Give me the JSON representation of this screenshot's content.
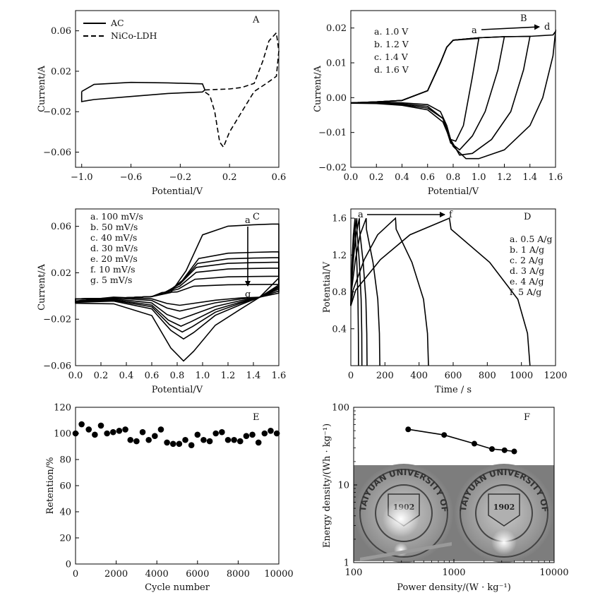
{
  "chart_data": [
    {
      "panel": "A",
      "type": "line",
      "xlabel": "Potential/V",
      "ylabel": "Current/A",
      "xlim": [
        -1.05,
        0.6
      ],
      "ylim": [
        -0.075,
        0.08
      ],
      "xticks": [
        -1.0,
        -0.6,
        -0.2,
        0.2,
        0.6
      ],
      "xtick_labels": [
        "−1.0",
        "−0.6",
        "−0.2",
        "0.2",
        "0.6"
      ],
      "yticks": [
        -0.06,
        -0.02,
        0.02,
        0.06
      ],
      "ytick_labels": [
        "−0.06",
        "−0.02",
        "0.02",
        "0.06"
      ],
      "legend": [
        {
          "label": "AC",
          "style": "solid"
        },
        {
          "label": "NiCo-LDH",
          "style": "dashed"
        }
      ],
      "series": [
        {
          "name": "AC",
          "style": "solid",
          "x": [
            -1.0,
            -0.9,
            -0.6,
            -0.3,
            -0.02,
            0.0,
            -0.02,
            -0.3,
            -0.6,
            -0.9,
            -1.0,
            -1.0
          ],
          "y": [
            0.0,
            0.007,
            0.009,
            0.0085,
            0.0075,
            0.0015,
            -0.0005,
            -0.002,
            -0.005,
            -0.008,
            -0.01,
            0.0
          ]
        },
        {
          "name": "NiCo-LDH",
          "style": "dashed",
          "x": [
            0.0,
            0.1,
            0.2,
            0.3,
            0.4,
            0.47,
            0.52,
            0.58,
            0.6,
            0.58,
            0.5,
            0.4,
            0.3,
            0.2,
            0.15,
            0.12,
            0.08,
            0.04,
            0.0
          ],
          "y": [
            0.0015,
            0.002,
            0.0025,
            0.004,
            0.008,
            0.03,
            0.05,
            0.058,
            0.04,
            0.015,
            0.008,
            0.0,
            -0.02,
            -0.04,
            -0.055,
            -0.05,
            -0.02,
            -0.004,
            -0.0005
          ]
        }
      ]
    },
    {
      "panel": "B",
      "type": "line",
      "xlabel": "Potential/V",
      "ylabel": "Current/A",
      "xlim": [
        0.0,
        1.6
      ],
      "ylim": [
        -0.02,
        0.025
      ],
      "xticks": [
        0.0,
        0.2,
        0.4,
        0.6,
        0.8,
        1.0,
        1.2,
        1.4,
        1.6
      ],
      "xtick_labels": [
        "0.0",
        "0.2",
        "0.4",
        "0.6",
        "0.8",
        "1.0",
        "1.2",
        "1.4",
        "1.6"
      ],
      "yticks": [
        -0.02,
        -0.01,
        0.0,
        0.01,
        0.02
      ],
      "ytick_labels": [
        "−0.02",
        "−0.01",
        "0.00",
        "0.01",
        "0.02"
      ],
      "legend": [
        "a. 1.0 V",
        "b. 1.2 V",
        "c. 1.4 V",
        "d. 1.6 V"
      ],
      "annotation": {
        "from": "a",
        "to": "d"
      },
      "series": [
        {
          "name": "a",
          "vmax": 1.0,
          "upper": {
            "x": [
              0.0,
              0.2,
              0.4,
              0.6,
              0.7,
              0.75,
              0.8,
              1.0
            ],
            "y": [
              -0.0015,
              -0.0012,
              -0.0008,
              0.002,
              0.01,
              0.0145,
              0.0165,
              0.017
            ]
          },
          "lower": {
            "x": [
              1.0,
              0.95,
              0.88,
              0.82,
              0.78,
              0.75,
              0.7,
              0.6,
              0.4,
              0.2,
              0.0
            ],
            "y": [
              0.017,
              0.006,
              -0.008,
              -0.0125,
              -0.012,
              -0.008,
              -0.004,
              -0.002,
              -0.0015,
              -0.0012,
              -0.0015
            ]
          }
        },
        {
          "name": "b",
          "vmax": 1.2,
          "upper": {
            "x": [
              0.0,
              0.2,
              0.4,
              0.6,
              0.7,
              0.75,
              0.8,
              1.0,
              1.2
            ],
            "y": [
              -0.0015,
              -0.0012,
              -0.0008,
              0.002,
              0.01,
              0.0145,
              0.0165,
              0.0172,
              0.0175
            ]
          },
          "lower": {
            "x": [
              1.2,
              1.15,
              1.05,
              0.95,
              0.85,
              0.78,
              0.72,
              0.6,
              0.4,
              0.2,
              0.0
            ],
            "y": [
              0.0175,
              0.008,
              -0.004,
              -0.011,
              -0.015,
              -0.013,
              -0.006,
              -0.0025,
              -0.0018,
              -0.0014,
              -0.0015
            ]
          }
        },
        {
          "name": "c",
          "vmax": 1.4,
          "upper": {
            "x": [
              0.0,
              0.2,
              0.4,
              0.6,
              0.7,
              0.75,
              0.8,
              1.0,
              1.2,
              1.4
            ],
            "y": [
              -0.0015,
              -0.0012,
              -0.0008,
              0.002,
              0.01,
              0.0145,
              0.0165,
              0.0172,
              0.0175,
              0.0176
            ]
          },
          "lower": {
            "x": [
              1.4,
              1.35,
              1.25,
              1.1,
              0.95,
              0.85,
              0.78,
              0.72,
              0.6,
              0.4,
              0.2,
              0.0
            ],
            "y": [
              0.0176,
              0.008,
              -0.004,
              -0.012,
              -0.016,
              -0.0165,
              -0.012,
              -0.006,
              -0.003,
              -0.002,
              -0.0016,
              -0.0016
            ]
          }
        },
        {
          "name": "d",
          "vmax": 1.6,
          "upper": {
            "x": [
              0.0,
              0.2,
              0.4,
              0.6,
              0.7,
              0.75,
              0.8,
              1.0,
              1.2,
              1.4,
              1.58,
              1.6
            ],
            "y": [
              -0.0015,
              -0.0012,
              -0.0008,
              0.002,
              0.01,
              0.0145,
              0.0165,
              0.0172,
              0.0175,
              0.0176,
              0.018,
              0.019
            ]
          },
          "lower": {
            "x": [
              1.6,
              1.58,
              1.5,
              1.4,
              1.2,
              1.0,
              0.9,
              0.8,
              0.72,
              0.6,
              0.4,
              0.2,
              0.0
            ],
            "y": [
              0.019,
              0.012,
              0.0,
              -0.008,
              -0.015,
              -0.0175,
              -0.0175,
              -0.014,
              -0.007,
              -0.0035,
              -0.0022,
              -0.0017,
              -0.0016
            ]
          }
        }
      ]
    },
    {
      "panel": "C",
      "type": "line",
      "xlabel": "Potential/V",
      "ylabel": "Current/A",
      "xlim": [
        0.0,
        1.6
      ],
      "ylim": [
        -0.06,
        0.075
      ],
      "xticks": [
        0.0,
        0.2,
        0.4,
        0.6,
        0.8,
        1.0,
        1.2,
        1.4,
        1.6
      ],
      "xtick_labels": [
        "0.0",
        "0.2",
        "0.4",
        "0.6",
        "0.8",
        "1.0",
        "1.2",
        "1.4",
        "1.6"
      ],
      "yticks": [
        -0.06,
        -0.02,
        0.02,
        0.06
      ],
      "ytick_labels": [
        "−0.06",
        "−0.02",
        "0.02",
        "0.06"
      ],
      "legend": [
        "a. 100 mV/s",
        "b. 50 mV/s",
        "c. 40 mV/s",
        "d. 30 mV/s",
        "e. 20 mV/s",
        "f. 10 mV/s",
        "g. 5 mV/s"
      ],
      "annotation": {
        "from": "a",
        "to": "g"
      },
      "series": [
        {
          "name": "a",
          "plateau": 0.062,
          "trough": -0.056,
          "onset": 0.75,
          "tmin": 0.85
        },
        {
          "name": "b",
          "plateau": 0.038,
          "trough": -0.037,
          "onset": 0.72,
          "tmin": 0.85
        },
        {
          "name": "c",
          "plateau": 0.033,
          "trough": -0.031,
          "onset": 0.71,
          "tmin": 0.84
        },
        {
          "name": "d",
          "plateau": 0.029,
          "trough": -0.026,
          "onset": 0.7,
          "tmin": 0.83
        },
        {
          "name": "e",
          "plateau": 0.024,
          "trough": -0.02,
          "onset": 0.7,
          "tmin": 0.82
        },
        {
          "name": "f",
          "plateau": 0.017,
          "trough": -0.013,
          "onset": 0.69,
          "tmin": 0.82
        },
        {
          "name": "g",
          "plateau": 0.01,
          "trough": -0.008,
          "onset": 0.68,
          "tmin": 0.82
        }
      ]
    },
    {
      "panel": "D",
      "type": "line",
      "xlabel": "Time / s",
      "ylabel": "Potential/V",
      "xlim": [
        0,
        1200
      ],
      "ylim": [
        0.0,
        1.7
      ],
      "xticks": [
        0,
        200,
        400,
        600,
        800,
        1000,
        1200
      ],
      "xtick_labels": [
        "0",
        "200",
        "400",
        "600",
        "800",
        "1000",
        "1200"
      ],
      "yticks": [
        0.4,
        0.8,
        1.2,
        1.6
      ],
      "ytick_labels": [
        "0.4",
        "0.8",
        "1.2",
        "1.6"
      ],
      "legend": [
        "a. 0.5 A/g",
        "b. 1 A/g",
        "c. 2 A/g",
        "d. 3 A/g",
        "e. 4 A/g",
        "f. 5 A/g"
      ],
      "annotation": {
        "from": "a",
        "to": "f"
      },
      "series": [
        {
          "name": "f",
          "tpeak": 25,
          "tend": 45
        },
        {
          "name": "e",
          "tpeak": 35,
          "tend": 65
        },
        {
          "name": "d",
          "tpeak": 50,
          "tend": 95
        },
        {
          "name": "c",
          "tpeak": 90,
          "tend": 170
        },
        {
          "name": "b",
          "tpeak": 262,
          "tend": 455
        },
        {
          "name": "a",
          "tpeak": 578,
          "tend": 1050
        }
      ]
    },
    {
      "panel": "E",
      "type": "scatter",
      "xlabel": "Cycle number",
      "ylabel": "Retention/%",
      "xlim": [
        0,
        10000
      ],
      "ylim": [
        0,
        120
      ],
      "xticks": [
        0,
        2000,
        4000,
        6000,
        8000,
        10000
      ],
      "xtick_labels": [
        "0",
        "2000",
        "4000",
        "6000",
        "8000",
        "10000"
      ],
      "yticks": [
        0,
        20,
        40,
        60,
        80,
        100,
        120
      ],
      "ytick_labels": [
        "0",
        "20",
        "40",
        "60",
        "80",
        "100",
        "120"
      ],
      "x": [
        0,
        300,
        650,
        950,
        1250,
        1550,
        1850,
        2150,
        2450,
        2700,
        3000,
        3300,
        3600,
        3900,
        4200,
        4500,
        4800,
        5100,
        5400,
        5700,
        6000,
        6300,
        6600,
        6900,
        7200,
        7500,
        7800,
        8100,
        8400,
        8700,
        9000,
        9300,
        9600,
        9900
      ],
      "y": [
        100,
        107,
        103,
        99,
        106,
        100,
        101,
        102,
        103,
        95,
        94,
        101,
        95,
        98,
        103,
        93,
        92,
        92,
        95,
        91,
        99,
        95,
        94,
        100,
        101,
        95,
        95,
        94,
        98,
        99,
        93,
        100,
        102,
        100
      ]
    },
    {
      "panel": "F",
      "type": "line",
      "scale": "log-log",
      "xlabel": "Power density/(W · kg⁻¹)",
      "ylabel": "Energy density/(Wh · kg⁻¹)",
      "xlim": [
        100,
        10000
      ],
      "ylim": [
        1,
        100
      ],
      "xticks": [
        100,
        1000,
        10000
      ],
      "xtick_labels": [
        "100",
        "1000",
        "10000"
      ],
      "yticks": [
        1,
        10,
        100
      ],
      "ytick_labels": [
        "1",
        "10",
        "100"
      ],
      "x": [
        350,
        800,
        1600,
        2400,
        3200,
        4000
      ],
      "y": [
        52,
        44,
        34,
        29,
        28,
        27
      ],
      "inset": {
        "seal_text": "TAIYUAN UNIVERSITY OF TECHNOLOGY",
        "seal_year": "1902",
        "count": 2
      }
    }
  ]
}
